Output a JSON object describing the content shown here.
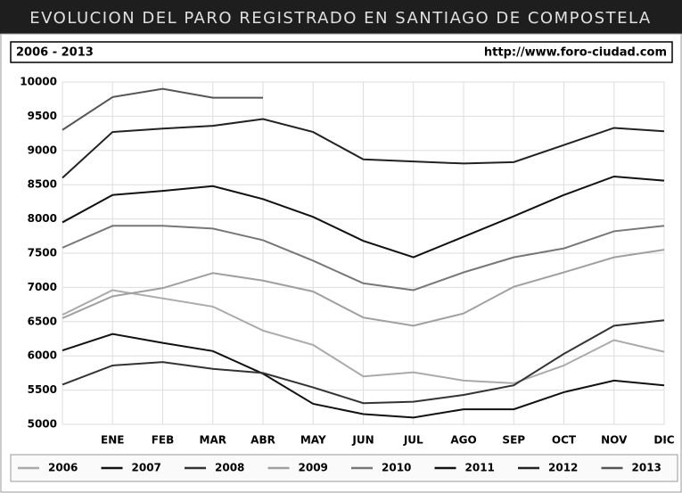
{
  "chart_data": {
    "type": "line",
    "title": "EVOLUCION DEL PARO REGISTRADO EN SANTIAGO DE COMPOSTELA",
    "subtitle": "2006 - 2013",
    "source": "http://www.foro-ciudad.com",
    "categories": [
      null,
      "ENE",
      "FEB",
      "MAR",
      "ABR",
      "MAY",
      "JUN",
      "JUL",
      "AGO",
      "SEP",
      "OCT",
      "NOV",
      "DIC"
    ],
    "ylim": [
      5000,
      10000
    ],
    "yticks": [
      5000,
      5500,
      6000,
      6500,
      7000,
      7500,
      8000,
      8500,
      9000,
      9500,
      10000
    ],
    "grid": true,
    "legend": "bottom",
    "series": [
      {
        "name": "2006",
        "color": "#aaaaaa",
        "values": [
          6600,
          6960,
          6840,
          6720,
          6370,
          6160,
          5700,
          5760,
          5640,
          5600,
          5860,
          6230,
          6060
        ]
      },
      {
        "name": "2007",
        "color": "#111111",
        "values": [
          6080,
          6320,
          6190,
          6070,
          5740,
          5300,
          5150,
          5100,
          5220,
          5220,
          5470,
          5640,
          5570
        ]
      },
      {
        "name": "2008",
        "color": "#333333",
        "values": [
          5580,
          5860,
          5910,
          5810,
          5750,
          5540,
          5310,
          5330,
          5430,
          5570,
          6030,
          6440,
          6520
        ]
      },
      {
        "name": "2009",
        "color": "#a0a0a0",
        "values": [
          6550,
          6870,
          6990,
          7210,
          7100,
          6940,
          6560,
          6440,
          6620,
          7010,
          7220,
          7440,
          7550
        ]
      },
      {
        "name": "2010",
        "color": "#777777",
        "values": [
          7580,
          7900,
          7900,
          7860,
          7690,
          7390,
          7060,
          6960,
          7220,
          7440,
          7570,
          7820,
          7900
        ]
      },
      {
        "name": "2011",
        "color": "#111111",
        "values": [
          7950,
          8350,
          8410,
          8480,
          8290,
          8030,
          7680,
          7440,
          7740,
          8040,
          8350,
          8620,
          8560
        ]
      },
      {
        "name": "2012",
        "color": "#222222",
        "values": [
          8600,
          9270,
          9320,
          9360,
          9460,
          9270,
          8870,
          8840,
          8810,
          8830,
          9080,
          9330,
          9280
        ]
      },
      {
        "name": "2013",
        "color": "#555555",
        "values": [
          9300,
          9780,
          9900,
          9770,
          9770,
          null,
          null,
          null,
          null,
          null,
          null,
          null,
          null
        ]
      }
    ]
  }
}
